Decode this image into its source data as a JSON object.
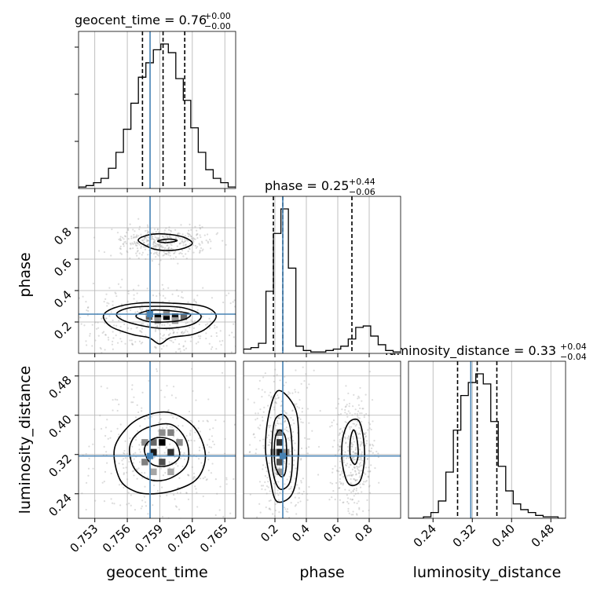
{
  "chart_data": {
    "type": "corner",
    "parameters": [
      "geocent_time",
      "phase",
      "luminosity_distance"
    ],
    "grid": true,
    "truth_color": "#4682b4",
    "titles": [
      {
        "label": "geocent_time",
        "value": "0.76",
        "plus": "+0.00",
        "minus": "−0.00"
      },
      {
        "label": "phase",
        "value": "0.25",
        "plus": "+0.44",
        "minus": "−0.06"
      },
      {
        "label": "luminosity_distance",
        "value": "0.33",
        "plus": "+0.04",
        "minus": "−0.04"
      }
    ],
    "ranges": {
      "geocent_time": [
        0.7515,
        0.766
      ],
      "phase": [
        0.0,
        1.0
      ],
      "luminosity_distance": [
        0.19,
        0.51
      ]
    },
    "ticks": {
      "geocent_time": [
        0.753,
        0.756,
        0.759,
        0.762,
        0.765
      ],
      "phase": [
        0.2,
        0.4,
        0.6,
        0.8
      ],
      "luminosity_distance": [
        0.24,
        0.32,
        0.4,
        0.48
      ]
    },
    "tick_labels": {
      "geocent_time": [
        "0.753",
        "0.756",
        "0.759",
        "0.762",
        "0.765"
      ],
      "phase": [
        "0.2",
        "0.4",
        "0.6",
        "0.8"
      ],
      "luminosity_distance": [
        "0.24",
        "0.32",
        "0.40",
        "0.48"
      ]
    },
    "truths": {
      "geocent_time": 0.7581,
      "phase": 0.25,
      "luminosity_distance": 0.317
    },
    "quantiles": {
      "geocent_time": [
        0.7574,
        0.7593,
        0.7613
      ],
      "phase": [
        0.19,
        0.25,
        0.69
      ],
      "luminosity_distance": [
        0.29,
        0.33,
        0.37
      ]
    },
    "histograms": {
      "geocent_time": [
        1,
        2,
        4,
        7,
        14,
        25,
        41,
        59,
        77,
        87,
        96,
        100,
        94,
        76,
        61,
        42,
        25,
        13,
        7,
        4,
        1
      ],
      "phase": [
        3,
        4,
        7,
        43,
        83,
        100,
        59,
        5,
        2,
        1,
        1,
        2,
        3,
        5,
        10,
        18,
        19,
        12,
        6,
        2,
        1
      ],
      "luminosity_distance": [
        0,
        0,
        1,
        4,
        12,
        32,
        61,
        85,
        94,
        100,
        93,
        67,
        36,
        19,
        10,
        6,
        4,
        2,
        1,
        1,
        0
      ]
    },
    "contours": {
      "phase_vs_geocent_time": [
        {
          "level": 1,
          "points": [
            [
              0.757,
              0.72
            ],
            [
              0.7582,
              0.67
            ],
            [
              0.7595,
              0.655
            ],
            [
              0.761,
              0.665
            ],
            [
              0.762,
              0.7
            ],
            [
              0.7612,
              0.74
            ],
            [
              0.7595,
              0.76
            ],
            [
              0.758,
              0.755
            ]
          ]
        },
        {
          "level": 2,
          "points": [
            [
              0.7588,
              0.715
            ],
            [
              0.7596,
              0.705
            ],
            [
              0.7606,
              0.718
            ],
            [
              0.7598,
              0.728
            ]
          ]
        },
        {
          "level": 1,
          "points": [
            [
              0.7538,
              0.24
            ],
            [
              0.7545,
              0.17
            ],
            [
              0.7565,
              0.12
            ],
            [
              0.758,
              0.1
            ],
            [
              0.759,
              0.06
            ],
            [
              0.76,
              0.1
            ],
            [
              0.762,
              0.12
            ],
            [
              0.7633,
              0.16
            ],
            [
              0.7642,
              0.24
            ],
            [
              0.763,
              0.3
            ],
            [
              0.76,
              0.32
            ],
            [
              0.757,
              0.32
            ],
            [
              0.7548,
              0.29
            ]
          ]
        },
        {
          "level": 2,
          "points": [
            [
              0.755,
              0.25
            ],
            [
              0.756,
              0.2
            ],
            [
              0.759,
              0.16
            ],
            [
              0.7618,
              0.18
            ],
            [
              0.7628,
              0.24
            ],
            [
              0.7612,
              0.29
            ],
            [
              0.7588,
              0.3
            ],
            [
              0.7562,
              0.29
            ]
          ]
        },
        {
          "level": 3,
          "points": [
            [
              0.7568,
              0.24
            ],
            [
              0.7578,
              0.205
            ],
            [
              0.7595,
              0.2
            ],
            [
              0.7612,
              0.215
            ],
            [
              0.7618,
              0.25
            ],
            [
              0.7602,
              0.27
            ],
            [
              0.7582,
              0.275
            ]
          ]
        }
      ],
      "luminosity_distance_vs_geocent_time": [
        {
          "level": 1,
          "points": [
            [
              0.7548,
              0.33
            ],
            [
              0.7553,
              0.27
            ],
            [
              0.7567,
              0.245
            ],
            [
              0.7584,
              0.24
            ],
            [
              0.7605,
              0.248
            ],
            [
              0.7625,
              0.272
            ],
            [
              0.7632,
              0.32
            ],
            [
              0.7622,
              0.375
            ],
            [
              0.76,
              0.405
            ],
            [
              0.7578,
              0.4
            ],
            [
              0.756,
              0.375
            ]
          ]
        },
        {
          "level": 2,
          "points": [
            [
              0.7562,
              0.33
            ],
            [
              0.7567,
              0.29
            ],
            [
              0.7582,
              0.268
            ],
            [
              0.76,
              0.272
            ],
            [
              0.7615,
              0.3
            ],
            [
              0.7615,
              0.345
            ],
            [
              0.7602,
              0.38
            ],
            [
              0.7583,
              0.378
            ],
            [
              0.7568,
              0.36
            ]
          ]
        },
        {
          "level": 3,
          "points": [
            [
              0.7576,
              0.325
            ],
            [
              0.7583,
              0.3
            ],
            [
              0.7597,
              0.297
            ],
            [
              0.7608,
              0.315
            ],
            [
              0.7604,
              0.345
            ],
            [
              0.759,
              0.355
            ],
            [
              0.7579,
              0.345
            ]
          ]
        }
      ],
      "luminosity_distance_vs_phase": [
        {
          "level": 1,
          "points": [
            [
              0.17,
              0.27
            ],
            [
              0.21,
              0.225
            ],
            [
              0.3,
              0.235
            ],
            [
              0.34,
              0.28
            ],
            [
              0.35,
              0.37
            ],
            [
              0.32,
              0.42
            ],
            [
              0.22,
              0.45
            ],
            [
              0.16,
              0.4
            ],
            [
              0.14,
              0.33
            ]
          ]
        },
        {
          "level": 2,
          "points": [
            [
              0.19,
              0.28
            ],
            [
              0.23,
              0.25
            ],
            [
              0.29,
              0.26
            ],
            [
              0.31,
              0.3
            ],
            [
              0.3,
              0.37
            ],
            [
              0.26,
              0.4
            ],
            [
              0.2,
              0.39
            ],
            [
              0.18,
              0.33
            ]
          ]
        },
        {
          "level": 3,
          "points": [
            [
              0.2,
              0.3
            ],
            [
              0.24,
              0.275
            ],
            [
              0.27,
              0.29
            ],
            [
              0.27,
              0.35
            ],
            [
              0.23,
              0.37
            ],
            [
              0.2,
              0.35
            ]
          ]
        },
        {
          "level": 1,
          "points": [
            [
              0.63,
              0.3
            ],
            [
              0.67,
              0.26
            ],
            [
              0.74,
              0.265
            ],
            [
              0.77,
              0.31
            ],
            [
              0.76,
              0.36
            ],
            [
              0.73,
              0.39
            ],
            [
              0.67,
              0.385
            ],
            [
              0.63,
              0.35
            ]
          ]
        },
        {
          "level": 2,
          "points": [
            [
              0.68,
              0.315
            ],
            [
              0.71,
              0.3
            ],
            [
              0.73,
              0.32
            ],
            [
              0.72,
              0.355
            ],
            [
              0.7,
              0.37
            ],
            [
              0.68,
              0.35
            ]
          ]
        }
      ]
    },
    "density_cells": {
      "phase_vs_geocent_time": [
        [
          0.7588,
          0.235,
          1.0
        ],
        [
          0.7596,
          0.235,
          1.0
        ],
        [
          0.7604,
          0.235,
          0.9
        ],
        [
          0.758,
          0.235,
          0.6
        ],
        [
          0.7612,
          0.235,
          0.6
        ],
        [
          0.7596,
          0.26,
          0.45
        ],
        [
          0.758,
          0.26,
          0.35
        ],
        [
          0.7588,
          0.21,
          0.4
        ],
        [
          0.7604,
          0.21,
          0.4
        ]
      ],
      "luminosity_distance_vs_geocent_time": [
        [
          0.7592,
          0.345,
          1.0
        ],
        [
          0.7584,
          0.325,
          0.9
        ],
        [
          0.76,
          0.325,
          0.8
        ],
        [
          0.7592,
          0.305,
          0.7
        ],
        [
          0.7584,
          0.345,
          0.6
        ],
        [
          0.76,
          0.365,
          0.5
        ],
        [
          0.7576,
          0.305,
          0.5
        ],
        [
          0.7576,
          0.345,
          0.45
        ],
        [
          0.7608,
          0.345,
          0.45
        ],
        [
          0.7592,
          0.365,
          0.45
        ],
        [
          0.7584,
          0.285,
          0.35
        ],
        [
          0.76,
          0.285,
          0.35
        ]
      ],
      "luminosity_distance_vs_phase": [
        [
          0.23,
          0.325,
          0.9
        ],
        [
          0.23,
          0.345,
          0.8
        ],
        [
          0.23,
          0.305,
          0.7
        ],
        [
          0.23,
          0.365,
          0.55
        ],
        [
          0.27,
          0.325,
          0.45
        ],
        [
          0.19,
          0.325,
          0.4
        ],
        [
          0.23,
          0.285,
          0.4
        ]
      ]
    }
  }
}
